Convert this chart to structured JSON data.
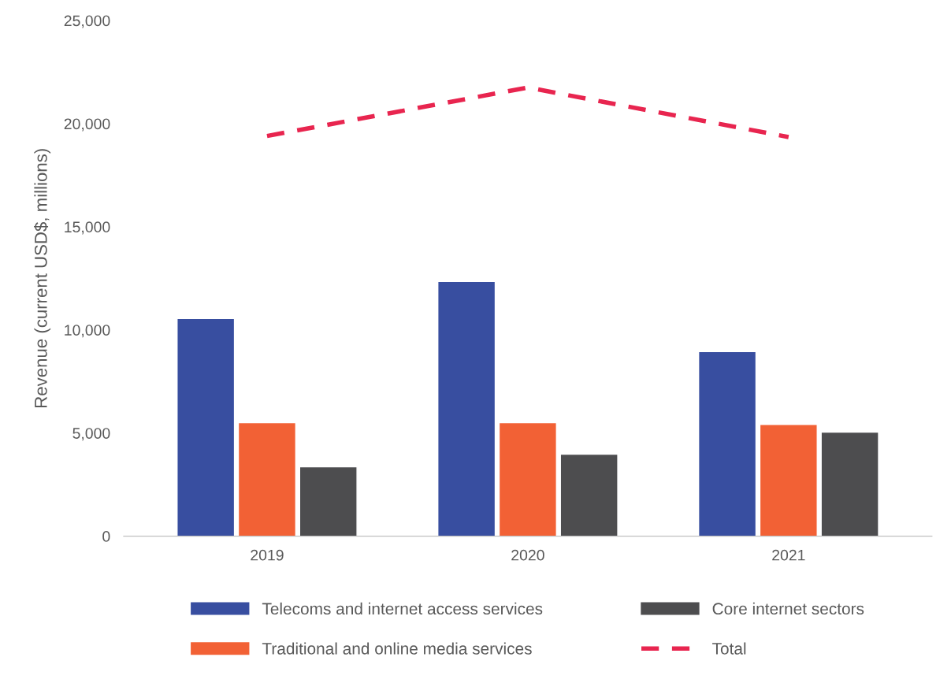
{
  "chart_data": {
    "type": "bar",
    "ylabel": "Revenue (current USD$, millions)",
    "categories": [
      "2019",
      "2020",
      "2021"
    ],
    "series": [
      {
        "name": "Telecoms and internet access services",
        "color": "#384ea0",
        "values": [
          10550,
          12350,
          8950
        ]
      },
      {
        "name": "Traditional and online media services",
        "color": "#f26135",
        "values": [
          5500,
          5500,
          5420
        ]
      },
      {
        "name": "Core internet sectors",
        "color": "#4d4d4f",
        "values": [
          3360,
          3970,
          5040
        ]
      },
      {
        "name": "Total",
        "type": "line",
        "color": "#e8254f",
        "line_style": "dashed",
        "values": [
          19400,
          21750,
          19350
        ]
      }
    ],
    "ylim": [
      0,
      25000
    ],
    "yticks": [
      {
        "value": 0,
        "label": "0"
      },
      {
        "value": 5000,
        "label": "5,000"
      },
      {
        "value": 10000,
        "label": "10,000"
      },
      {
        "value": 15000,
        "label": "15,000"
      },
      {
        "value": 20000,
        "label": "20,000"
      },
      {
        "value": 25000,
        "label": "25,000"
      }
    ],
    "grid": false,
    "legend": "bottom"
  }
}
